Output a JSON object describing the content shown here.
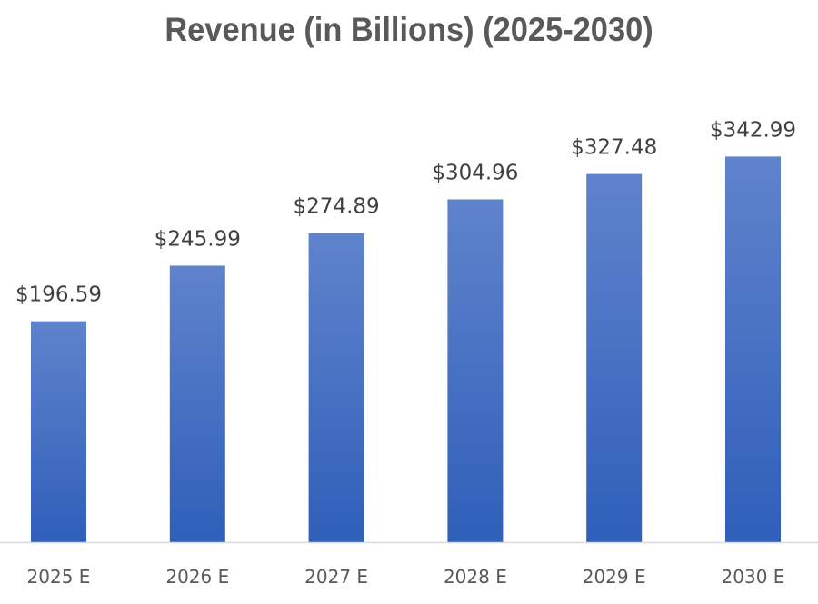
{
  "chart_data": {
    "type": "bar",
    "title": "Revenue (in Billions) (2025-2030)",
    "xlabel": "",
    "ylabel": "",
    "categories": [
      "2025 E",
      "2026 E",
      "2027 E",
      "2028 E",
      "2029 E",
      "2030 E"
    ],
    "values": [
      196.59,
      245.99,
      274.89,
      304.96,
      327.48,
      342.99
    ],
    "data_labels": [
      "$196.59",
      "$245.99",
      "$274.89",
      "$304.96",
      "$327.48",
      "$342.99"
    ],
    "ylim": [
      0,
      380
    ],
    "grid": false,
    "legend": "none",
    "colors": {
      "bar_top": "#5f83cc",
      "bar_bottom": "#2f5fb9",
      "axis": "#d9d9d9"
    }
  }
}
